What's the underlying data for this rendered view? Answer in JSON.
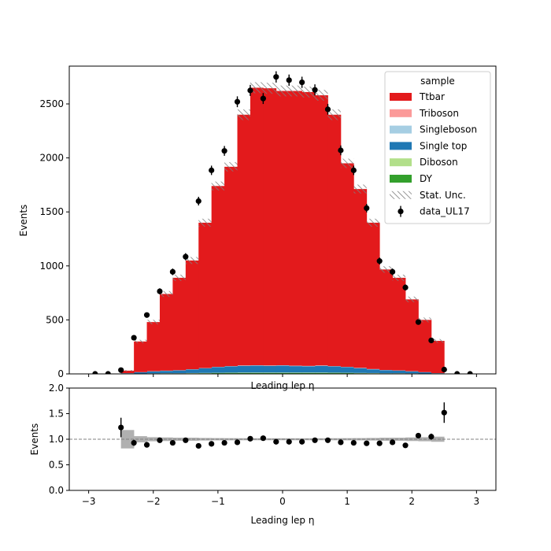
{
  "chart_data": [
    {
      "type": "bar",
      "panel": "main",
      "stacked": true,
      "histogram": true,
      "xlabel": "Leading lep η",
      "ylabel": "Events",
      "xlim": [
        -3.3,
        3.3
      ],
      "ylim": [
        0,
        2850
      ],
      "yticks": [
        0,
        500,
        1000,
        1500,
        2000,
        2500
      ],
      "bin_edges": [
        -2.5,
        -2.3,
        -2.1,
        -1.9,
        -1.7,
        -1.5,
        -1.3,
        -1.1,
        -0.9,
        -0.7,
        -0.5,
        -0.3,
        -0.1,
        0.1,
        0.3,
        0.5,
        0.7,
        0.9,
        1.1,
        1.3,
        1.5,
        1.7,
        1.9,
        2.1,
        2.3,
        2.5
      ],
      "series": [
        {
          "name": "DY",
          "color": "#33a02c",
          "values": [
            1,
            2,
            3,
            4,
            4,
            5,
            6,
            7,
            7,
            8,
            8,
            8,
            8,
            8,
            8,
            8,
            7,
            7,
            6,
            5,
            4,
            4,
            3,
            2,
            1
          ]
        },
        {
          "name": "Diboson",
          "color": "#b2df8a",
          "values": [
            1,
            1,
            2,
            2,
            2,
            3,
            3,
            3,
            4,
            4,
            4,
            4,
            4,
            4,
            4,
            4,
            4,
            3,
            3,
            3,
            2,
            2,
            2,
            1,
            1
          ]
        },
        {
          "name": "Single top",
          "color": "#1f78b4",
          "values": [
            4,
            12,
            18,
            22,
            26,
            32,
            42,
            52,
            58,
            62,
            64,
            62,
            64,
            60,
            58,
            62,
            58,
            52,
            44,
            34,
            28,
            24,
            18,
            12,
            4
          ]
        },
        {
          "name": "Singleboson",
          "color": "#a6cee3",
          "values": [
            1,
            1,
            2,
            2,
            2,
            3,
            3,
            3,
            3,
            4,
            4,
            4,
            4,
            4,
            4,
            4,
            3,
            3,
            3,
            3,
            2,
            2,
            2,
            1,
            1
          ]
        },
        {
          "name": "Triboson",
          "color": "#fb9a99",
          "values": [
            0,
            0,
            0,
            0,
            0,
            0,
            0,
            0,
            0,
            0,
            0,
            0,
            0,
            0,
            0,
            0,
            0,
            0,
            0,
            0,
            0,
            0,
            0,
            0,
            0
          ]
        },
        {
          "name": "Ttbar",
          "color": "#e31a1c",
          "values": [
            23,
            284,
            455,
            710,
            856,
            1007,
            1346,
            1675,
            1846,
            2322,
            2570,
            2567,
            2540,
            2544,
            2536,
            2502,
            2328,
            1885,
            1656,
            1355,
            931,
            858,
            665,
            484,
            299
          ]
        }
      ],
      "stat_unc": {
        "name": "Stat. Unc.",
        "values": [
          6,
          16,
          21,
          27,
          29,
          32,
          37,
          41,
          43,
          49,
          51,
          51,
          50,
          50,
          50,
          50,
          49,
          43,
          41,
          37,
          30,
          29,
          26,
          22,
          17
        ]
      },
      "data": {
        "name": "data_UL17",
        "x": [
          -2.9,
          -2.7,
          -2.5,
          -2.3,
          -2.1,
          -1.9,
          -1.7,
          -1.5,
          -1.3,
          -1.1,
          -0.9,
          -0.7,
          -0.5,
          -0.3,
          -0.1,
          0.1,
          0.3,
          0.5,
          0.7,
          0.9,
          1.1,
          1.3,
          1.5,
          1.7,
          1.9,
          2.1,
          2.3,
          2.5,
          2.7,
          2.9
        ],
        "y": [
          0,
          0,
          35,
          335,
          545,
          765,
          945,
          1085,
          1600,
          1885,
          2065,
          2520,
          2625,
          2550,
          2750,
          2720,
          2700,
          2630,
          2450,
          2070,
          1885,
          1535,
          1045,
          945,
          800,
          480,
          310,
          40,
          0,
          0
        ]
      },
      "legend": {
        "title": "sample",
        "position": "upper right",
        "entries": [
          "Ttbar",
          "Triboson",
          "Singleboson",
          "Single top",
          "Diboson",
          "DY",
          "Stat. Unc.",
          "data_UL17"
        ]
      }
    },
    {
      "type": "scatter",
      "panel": "ratio",
      "xlabel": "Leading lep η",
      "ylabel": "Events",
      "xlim": [
        -3.3,
        3.3
      ],
      "ylim": [
        0.0,
        2.0
      ],
      "xticks": [
        -3,
        -2,
        -1,
        0,
        1,
        2,
        3
      ],
      "yticks": [
        0.0,
        0.5,
        1.0,
        1.5,
        2.0
      ],
      "reference_line": 1.0,
      "x": [
        -2.5,
        -2.3,
        -2.1,
        -1.9,
        -1.7,
        -1.5,
        -1.3,
        -1.1,
        -0.9,
        -0.7,
        -0.5,
        -0.3,
        -0.1,
        0.1,
        0.3,
        0.5,
        0.7,
        0.9,
        1.1,
        1.3,
        1.5,
        1.7,
        1.9,
        2.1,
        2.3,
        2.5
      ],
      "y": [
        1.23,
        0.93,
        0.89,
        0.98,
        0.93,
        0.98,
        0.87,
        0.91,
        0.93,
        0.94,
        1.01,
        1.02,
        0.95,
        0.95,
        0.95,
        0.98,
        0.98,
        0.94,
        0.93,
        0.92,
        0.92,
        0.94,
        0.88,
        1.07,
        1.05,
        1.52
      ],
      "yerr": [
        0.19,
        0.06,
        0.04,
        0.04,
        0.03,
        0.03,
        0.03,
        0.02,
        0.02,
        0.02,
        0.02,
        0.02,
        0.02,
        0.02,
        0.02,
        0.02,
        0.02,
        0.02,
        0.02,
        0.02,
        0.03,
        0.03,
        0.03,
        0.05,
        0.06,
        0.2
      ],
      "unc_band": {
        "bin_edges": [
          -2.5,
          -2.3,
          -2.1,
          -1.9,
          -1.7,
          -1.5,
          -1.3,
          -1.1,
          -0.9,
          -0.7,
          -0.5,
          -0.3,
          -0.1,
          0.1,
          0.3,
          0.5,
          0.7,
          0.9,
          1.1,
          1.3,
          1.5,
          1.7,
          1.9,
          2.1,
          2.3,
          2.5
        ],
        "halfwidth": [
          0.18,
          0.06,
          0.04,
          0.035,
          0.03,
          0.03,
          0.025,
          0.022,
          0.021,
          0.02,
          0.019,
          0.019,
          0.019,
          0.019,
          0.019,
          0.019,
          0.02,
          0.021,
          0.022,
          0.025,
          0.03,
          0.03,
          0.035,
          0.04,
          0.05
        ]
      }
    }
  ]
}
